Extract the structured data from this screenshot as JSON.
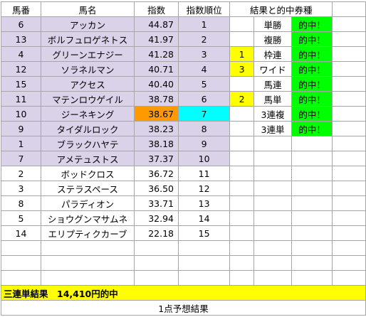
{
  "headers": {
    "number": "馬番",
    "name": "馬名",
    "index": "指数",
    "rank": "指数順位",
    "results": "結果と的中券種"
  },
  "rows": [
    {
      "number": "6",
      "name": "アッカン",
      "index": "44.87",
      "rank": "1",
      "highlight": true
    },
    {
      "number": "13",
      "name": "ボルフュロゲネトス",
      "index": "41.97",
      "rank": "2",
      "highlight": true
    },
    {
      "number": "4",
      "name": "グリーンエナジー",
      "index": "41.28",
      "rank": "3",
      "highlight": true
    },
    {
      "number": "12",
      "name": "ソラネルマン",
      "index": "40.71",
      "rank": "4",
      "highlight": true
    },
    {
      "number": "15",
      "name": "アクセス",
      "index": "40.40",
      "rank": "5",
      "highlight": true
    },
    {
      "number": "11",
      "name": "マテンロウゲイル",
      "index": "38.78",
      "rank": "6",
      "highlight": true
    },
    {
      "number": "10",
      "name": "ジーネキング",
      "index": "38.67",
      "rank": "7",
      "highlight": true,
      "index_color": "#ff9900",
      "rank_color": "#00ffff"
    },
    {
      "number": "9",
      "name": "タイダルロック",
      "index": "38.23",
      "rank": "8",
      "highlight": true
    },
    {
      "number": "1",
      "name": "ブラックハヤテ",
      "index": "38.18",
      "rank": "9",
      "highlight": true
    },
    {
      "number": "7",
      "name": "アメテュストス",
      "index": "37.37",
      "rank": "10",
      "highlight": true
    },
    {
      "number": "2",
      "name": "ボッドクロス",
      "index": "36.72",
      "rank": "11",
      "highlight": false
    },
    {
      "number": "3",
      "name": "ステラスペース",
      "index": "36.50",
      "rank": "12",
      "highlight": false
    },
    {
      "number": "8",
      "name": "パラディオン",
      "index": "33.71",
      "rank": "13",
      "highlight": false
    },
    {
      "number": "5",
      "name": "ショウグンマサムネ",
      "index": "32.94",
      "rank": "14",
      "highlight": false
    },
    {
      "number": "14",
      "name": "エリプティクカーブ",
      "index": "22.18",
      "rank": "15",
      "highlight": false
    },
    {
      "number": "",
      "name": "",
      "index": "",
      "rank": "",
      "highlight": false
    },
    {
      "number": "",
      "name": "",
      "index": "",
      "rank": "",
      "highlight": false
    },
    {
      "number": "",
      "name": "",
      "index": "",
      "rank": "",
      "highlight": false
    }
  ],
  "results": [
    {
      "mark": "",
      "type": "単勝",
      "hit": "的中！"
    },
    {
      "mark": "",
      "type": "複勝",
      "hit": "的中！"
    },
    {
      "mark": "1",
      "type": "枠連",
      "hit": "的中！"
    },
    {
      "mark": "3",
      "type": "ワイド",
      "hit": "的中！"
    },
    {
      "mark": "",
      "type": "馬連",
      "hit": "的中！"
    },
    {
      "mark": "2",
      "type": "馬単",
      "hit": "的中！"
    },
    {
      "mark": "",
      "type": "3連複",
      "hit": "的中！"
    },
    {
      "mark": "",
      "type": "3連単",
      "hit": "的中！"
    }
  ],
  "summary": "三連単結果　14,410円的中",
  "footer": "1点予想結果",
  "colors": {
    "highlight_row": "#d9d2e9",
    "mark": "#ffff00",
    "hit": "#00ff00",
    "summary": "#ffff00"
  }
}
